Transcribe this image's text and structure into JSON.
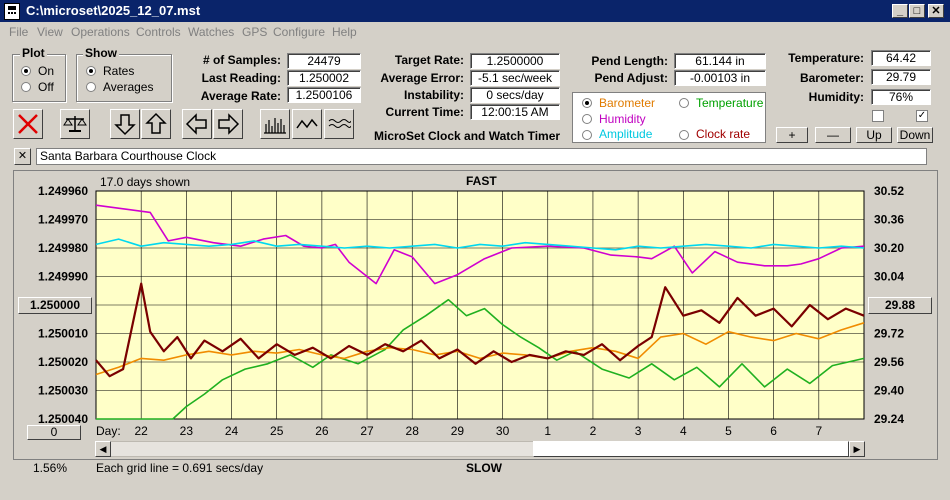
{
  "window": {
    "title": "C:\\microset\\2025_12_07.mst"
  },
  "menu": [
    "File",
    "View",
    "Operations",
    "Controls",
    "Watches",
    "GPS",
    "Configure",
    "Help"
  ],
  "plot_group": {
    "title": "Plot",
    "options": [
      "On",
      "Off"
    ],
    "selected": "On"
  },
  "show_group": {
    "title": "Show",
    "options": [
      "Rates",
      "Averages"
    ],
    "selected": "Rates"
  },
  "stats": {
    "samples_label": "# of Samples:",
    "samples": "24479",
    "last_label": "Last Reading:",
    "last": "1.250002",
    "avg_label": "Average Rate:",
    "avg": "1.2500106",
    "target_label": "Target Rate:",
    "target": "1.2500000",
    "err_label": "Average Error:",
    "err": "-5.1 sec/week",
    "inst_label": "Instability:",
    "inst": "0 secs/day",
    "time_label": "Current Time:",
    "time": "12:00:15 AM",
    "pend_len_label": "Pend Length:",
    "pend_len": "61.144 in",
    "pend_adj_label": "Pend Adjust:",
    "pend_adj": "-0.00103 in",
    "temp_label": "Temperature:",
    "temp": "64.42",
    "baro_label": "Barometer:",
    "baro": "29.79",
    "hum_label": "Humidity:",
    "hum": "76%"
  },
  "app_caption": "MicroSet Clock and Watch Timer",
  "sensor_options": [
    {
      "label": "Barometer",
      "color": "#e07b00",
      "selected": true
    },
    {
      "label": "Temperature",
      "color": "#00a000",
      "selected": false
    },
    {
      "label": "Humidity",
      "color": "#c000c0",
      "selected": false
    },
    {
      "label": "Amplitude",
      "color": "#00c8e0",
      "selected": false
    },
    {
      "label": "Clock rate",
      "color": "#a00000",
      "selected": false
    }
  ],
  "small_buttons": {
    "plus": "+",
    "minus": "—",
    "up": "Up",
    "down": "Down"
  },
  "checkboxes": [
    false,
    true
  ],
  "toolbar_icons": [
    "stop-icon",
    "balance-scale-icon",
    "arrow-down-icon",
    "arrow-up-icon",
    "arrow-left-icon",
    "arrow-right-icon",
    "bar-chart-icon",
    "line-wave-icon",
    "flat-wave-icon"
  ],
  "clock_name": "Santa Barbara Courthouse Clock",
  "close_label": "✕",
  "chart_data": {
    "type": "line",
    "top_label": "FAST",
    "bottom_label": "SLOW",
    "days_shown": "17.0 days shown",
    "left_ticks": [
      "1.249960",
      "1.249970",
      "1.249980",
      "1.249990",
      "1.250000",
      "1.250010",
      "1.250020",
      "1.250030",
      "1.250040"
    ],
    "left_ylim": [
      1.24996,
      1.25004
    ],
    "right_ticks": [
      "30.52",
      "30.36",
      "30.20",
      "30.04",
      "29.88",
      "29.72",
      "29.56",
      "29.40",
      "29.24"
    ],
    "right_ylim": [
      29.24,
      30.52
    ],
    "left_marker": "1.250000",
    "right_marker": "29.88",
    "x_label": "Day:",
    "x_ticks": [
      "22",
      "23",
      "24",
      "25",
      "26",
      "27",
      "28",
      "29",
      "30",
      "1",
      "2",
      "3",
      "4",
      "5",
      "6",
      "7"
    ],
    "x_range_days": 17.0,
    "grid_note": "Each grid line = 0.691 secs/day",
    "percent": "1.56%",
    "scroll_value": "0",
    "background": "#ffffc8",
    "series": [
      {
        "name": "Humidity",
        "color": "#d000d0",
        "x": [
          0,
          0.6,
          1.2,
          1.6,
          2.0,
          2.6,
          3.2,
          3.7,
          4.2,
          4.6,
          5.0,
          5.3,
          5.6,
          6.2,
          6.6,
          7.0,
          7.5,
          8.0,
          8.6,
          9.2,
          10.0,
          10.8,
          11.4,
          12.0,
          12.3,
          12.8,
          13.2,
          13.7,
          14.2,
          14.8,
          15.3,
          15.6,
          16.0,
          16.5,
          17.0
        ],
        "y": [
          30.44,
          30.42,
          30.4,
          30.24,
          30.26,
          30.23,
          30.21,
          30.25,
          30.27,
          30.21,
          30.2,
          30.22,
          30.12,
          30.0,
          30.19,
          30.15,
          30.0,
          30.05,
          30.14,
          30.2,
          30.21,
          30.2,
          30.16,
          30.15,
          30.14,
          30.21,
          30.06,
          30.18,
          30.12,
          30.1,
          30.1,
          30.11,
          30.14,
          30.2,
          30.21
        ]
      },
      {
        "name": "Amplitude",
        "color": "#00d8f0",
        "x": [
          0,
          0.5,
          1.0,
          1.5,
          2.0,
          2.5,
          3.0,
          3.5,
          4.0,
          4.5,
          5.0,
          5.5,
          6.0,
          6.5,
          7.0,
          7.5,
          8.0,
          8.5,
          9.0,
          9.5,
          10.0,
          10.5,
          11.0,
          11.5,
          12.0,
          12.5,
          13.0,
          13.5,
          14.0,
          14.5,
          15.0,
          15.5,
          16.0,
          16.5,
          17.0
        ],
        "y": [
          30.22,
          30.25,
          30.21,
          30.23,
          30.22,
          30.21,
          30.22,
          30.24,
          30.21,
          30.22,
          30.21,
          30.2,
          30.21,
          30.2,
          30.21,
          30.22,
          30.2,
          30.22,
          30.21,
          30.23,
          30.22,
          30.21,
          30.2,
          30.19,
          30.21,
          30.2,
          30.21,
          30.22,
          30.21,
          30.2,
          30.22,
          30.21,
          30.2,
          30.21,
          30.2
        ]
      },
      {
        "name": "Temperature",
        "color": "#20b020",
        "x": [
          0,
          0.5,
          1.0,
          1.7,
          2.0,
          2.4,
          2.8,
          3.3,
          3.8,
          4.3,
          4.8,
          5.2,
          5.8,
          6.4,
          6.8,
          7.3,
          7.8,
          8.2,
          8.6,
          9.0,
          9.4,
          9.8,
          10.2,
          10.6,
          11.2,
          11.8,
          12.3,
          12.8,
          13.3,
          13.8,
          14.3,
          14.8,
          15.3,
          15.8,
          16.3,
          17.0
        ],
        "y": [
          29.24,
          29.24,
          29.24,
          29.24,
          29.31,
          29.38,
          29.46,
          29.52,
          29.55,
          29.6,
          29.53,
          29.6,
          29.55,
          29.63,
          29.74,
          29.82,
          29.91,
          29.82,
          29.86,
          29.77,
          29.7,
          29.64,
          29.57,
          29.62,
          29.52,
          29.47,
          29.55,
          29.46,
          29.53,
          29.42,
          29.55,
          29.42,
          29.52,
          29.44,
          29.54,
          29.58
        ]
      },
      {
        "name": "Barometer",
        "color": "#f08c00",
        "x": [
          0,
          0.5,
          1.0,
          1.5,
          2.0,
          2.5,
          3.0,
          3.5,
          4.0,
          4.5,
          5.0,
          5.5,
          6.0,
          6.5,
          7.0,
          7.5,
          8.0,
          8.5,
          9.0,
          9.5,
          10.0,
          10.5,
          11.0,
          11.5,
          12.0,
          12.5,
          13.0,
          13.5,
          14.0,
          14.5,
          15.0,
          15.5,
          16.0,
          16.5,
          17.0
        ],
        "y": [
          29.49,
          29.53,
          29.58,
          29.57,
          29.6,
          29.62,
          29.6,
          29.62,
          29.61,
          29.63,
          29.6,
          29.58,
          29.62,
          29.64,
          29.63,
          29.6,
          29.62,
          29.58,
          29.61,
          29.6,
          29.58,
          29.62,
          29.64,
          29.62,
          29.58,
          29.7,
          29.72,
          29.66,
          29.73,
          29.7,
          29.68,
          29.72,
          29.69,
          29.74,
          29.78
        ]
      },
      {
        "name": "Clock rate",
        "color": "#7a0000",
        "x": [
          0,
          0.3,
          0.6,
          1.0,
          1.2,
          1.5,
          1.8,
          2.1,
          2.4,
          2.8,
          3.2,
          3.6,
          4.0,
          4.4,
          4.8,
          5.2,
          5.6,
          6.0,
          6.4,
          6.8,
          7.2,
          7.6,
          8.0,
          8.4,
          8.8,
          9.2,
          9.6,
          10.0,
          10.4,
          10.8,
          11.2,
          11.6,
          12.0,
          12.3,
          12.6,
          13.0,
          13.4,
          13.8,
          14.2,
          14.6,
          15.0,
          15.4,
          15.8,
          16.2,
          16.6,
          17.0
        ],
        "y": [
          29.57,
          29.48,
          29.52,
          30.0,
          29.73,
          29.62,
          29.7,
          29.58,
          29.68,
          29.62,
          29.69,
          29.58,
          29.66,
          29.6,
          29.64,
          29.58,
          29.65,
          29.6,
          29.66,
          29.62,
          29.68,
          29.58,
          29.63,
          29.55,
          29.62,
          29.56,
          29.6,
          29.58,
          29.62,
          29.6,
          29.66,
          29.57,
          29.65,
          29.7,
          29.98,
          29.82,
          29.85,
          29.78,
          29.92,
          29.82,
          29.86,
          29.76,
          29.88,
          29.8,
          29.86,
          29.82
        ]
      }
    ]
  }
}
